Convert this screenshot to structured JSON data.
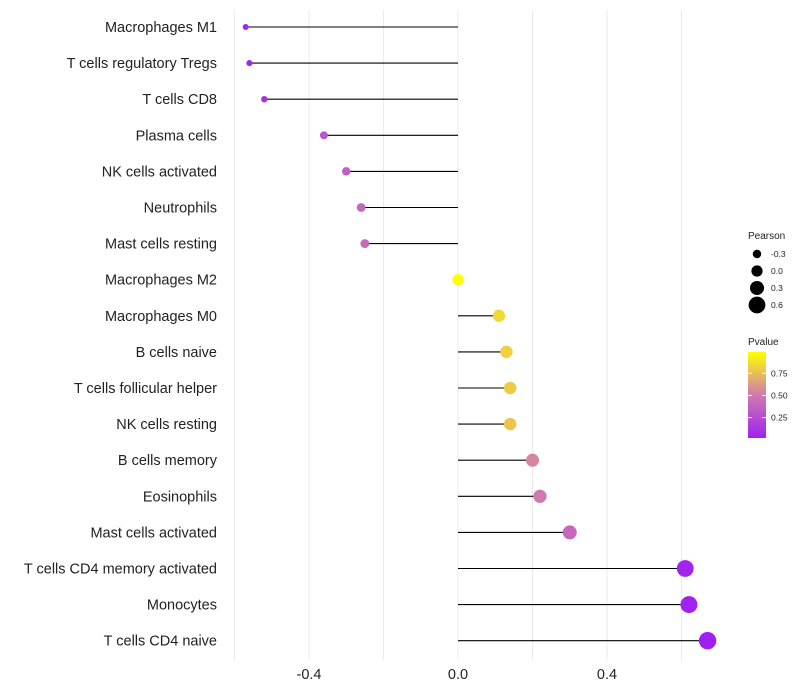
{
  "chart_data": {
    "type": "lollipop",
    "title": "",
    "xlabel": "",
    "ylabel": "",
    "xlim": [
      -0.6,
      0.72
    ],
    "xticks": [
      -0.4,
      0.0,
      0.4
    ],
    "xtick_labels": [
      "-0.4",
      "0.0",
      "0.4"
    ],
    "grid": true,
    "categories": [
      "Macrophages M1",
      "T cells regulatory  Tregs",
      "T cells CD8",
      "Plasma cells",
      "NK cells activated",
      "Neutrophils",
      "Mast cells resting",
      "Macrophages M2",
      "Macrophages M0",
      "B cells naive",
      "T cells follicular helper",
      "NK cells resting",
      "B cells memory",
      "Eosinophils",
      "Mast cells activated",
      "T cells CD4 memory activated",
      "Monocytes",
      "T cells CD4 naive"
    ],
    "pearson": [
      -0.57,
      -0.56,
      -0.52,
      -0.36,
      -0.3,
      -0.26,
      -0.25,
      0.0,
      0.11,
      0.13,
      0.14,
      0.14,
      0.2,
      0.22,
      0.3,
      0.61,
      0.62,
      0.67
    ],
    "pvalue": [
      0.05,
      0.04,
      0.1,
      0.3,
      0.35,
      0.4,
      0.42,
      0.99,
      0.85,
      0.82,
      0.8,
      0.78,
      0.55,
      0.5,
      0.4,
      0.04,
      0.03,
      0.02
    ],
    "legend_size": {
      "title": "Pearson",
      "values": [
        -0.3,
        0.0,
        0.3,
        0.6
      ],
      "labels": [
        "-0.3",
        "0.0",
        "0.3",
        "0.6"
      ]
    },
    "legend_color": {
      "title": "Pvalue",
      "ticks": [
        0.25,
        0.5,
        0.75
      ],
      "tick_labels": [
        "0.25",
        "0.50",
        "0.75"
      ],
      "range": [
        0.02,
        0.99
      ],
      "low_color": "#a020f0",
      "mid_color": "#d07ab0",
      "high_color": "#ffff00"
    },
    "line_color": "#000000",
    "grid_color": "#ebebeb"
  }
}
